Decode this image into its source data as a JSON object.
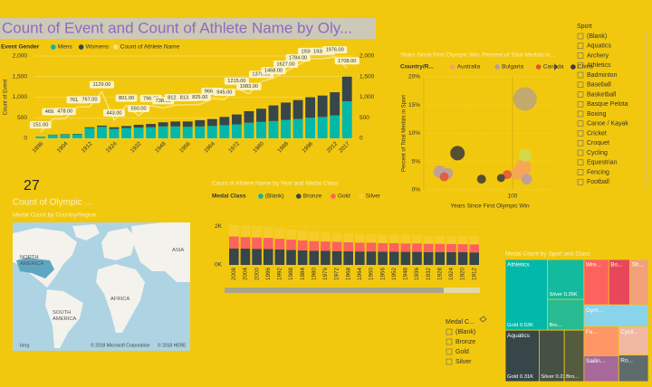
{
  "chart_data": [
    {
      "type": "combo",
      "title": "Count of Event and Count of Athlete Name by Oly...",
      "legend_title": "Event Gender",
      "y_label": "Count of Event",
      "categories": [
        "1896",
        null,
        "1904",
        null,
        "1912",
        null,
        "1924",
        null,
        "1932",
        null,
        "1948",
        null,
        "1956",
        null,
        "1964",
        null,
        "1972",
        null,
        "1980",
        null,
        "1988",
        null,
        "1996",
        null,
        "2012",
        "2017"
      ],
      "series": [
        {
          "name": "Mens",
          "color": "#01b8aa",
          "values": [
            43,
            85,
            90,
            100,
            250,
            280,
            230,
            250,
            260,
            270,
            290,
            290,
            280,
            290,
            300,
            320,
            340,
            380,
            400,
            420,
            450,
            470,
            500,
            520,
            560,
            900
          ]
        },
        {
          "name": "Womens",
          "color": "#374649",
          "values": [
            0,
            5,
            10,
            10,
            20,
            30,
            40,
            50,
            70,
            80,
            100,
            120,
            130,
            150,
            170,
            200,
            240,
            280,
            320,
            380,
            420,
            460,
            500,
            520,
            560,
            600
          ]
        },
        {
          "name": "Count of Athlete Name",
          "color": "#f7e27c",
          "type": "line",
          "axis": "y2",
          "values": [
            151,
            469,
            478,
            761,
            767,
            1129,
            443,
            801,
            550,
            796,
            738,
            812,
            813,
            825,
            966,
            945,
            1215,
            1083,
            1379,
            1468,
            1627,
            1784,
            1936,
            1938,
            1976,
            1708
          ],
          "value_labels": [
            "151.00",
            "469.00",
            "478.00",
            "761.00",
            "767.00",
            "1129.00",
            "443.00",
            "801.00",
            "550.00",
            "796.00",
            "738.00",
            "812.00",
            "813.00",
            "825.00",
            "966.00",
            "945.00",
            "1215.00",
            "1083.00",
            "1379.00",
            "1468.00",
            "1627.00",
            "1784.00",
            "1936.00",
            "1938.00",
            "1976.00",
            "1708.00"
          ]
        }
      ],
      "ylim": [
        0,
        2000
      ],
      "yticks": [
        0,
        500,
        {
          "value": 1000,
          "label": "1,000"
        },
        {
          "value": 1500,
          "label": "1,500"
        },
        {
          "value": 2000,
          "label": "2,000"
        }
      ],
      "y2lim": [
        0,
        2000
      ],
      "y2ticks": [
        0,
        500,
        {
          "value": 1000,
          "label": "1,000"
        },
        {
          "value": 1500,
          "label": "1,500"
        },
        {
          "value": 2000,
          "label": "2,000"
        }
      ],
      "grid": true
    },
    {
      "type": "scatter",
      "title": "Years Since First Olympic Win, Percent of Total Medals in...",
      "legend_title": "Country/R...",
      "x_label": "Years Since First Olympic Win",
      "y_label": "Percent of Total Medals in Sport",
      "xlim": [
        0,
        150
      ],
      "xticks": [
        100
      ],
      "ylim": [
        0,
        20
      ],
      "yticks": [
        {
          "value": 0,
          "label": "0%"
        },
        {
          "value": 5,
          "label": "5%"
        },
        {
          "value": 10,
          "label": "10%"
        },
        {
          "value": 15,
          "label": "15%"
        },
        {
          "value": 20,
          "label": "20%"
        }
      ],
      "series": [
        {
          "name": "Australia",
          "color": "#f5a35c",
          "x": [
            112,
            105
          ],
          "values": [
            4.0,
            2.9
          ],
          "sizes": [
            81,
            49
          ]
        },
        {
          "name": "Bulgaria",
          "color": "#b99aae",
          "x": [
            18,
            27,
            116
          ],
          "values": [
            3.2,
            2.9,
            1.9
          ],
          "sizes": [
            49,
            36,
            36
          ]
        },
        {
          "name": "Canada",
          "color": "#e0533a",
          "x": [
            23,
            94
          ],
          "values": [
            2.3,
            2.7
          ],
          "sizes": [
            25,
            25
          ]
        },
        {
          "name": "China",
          "color": "#3a3a3a",
          "x": [
            38,
            65,
            87
          ],
          "values": [
            6.5,
            1.9,
            2.1
          ],
          "sizes": [
            64,
            25,
            20
          ]
        },
        {
          "color": "#b8a57c",
          "x": [
            114
          ],
          "values": [
            16.1
          ],
          "sizes": [
            169
          ]
        },
        {
          "color": "#cfdc55",
          "x": [
            114
          ],
          "values": [
            6.1
          ],
          "sizes": [
            49
          ]
        }
      ]
    },
    {
      "type": "stacked_bar",
      "title": "Count of Athlete Name by Year and Medal Class",
      "legend_title": "Medal Class",
      "categories": [
        "2008",
        "2004",
        "2000",
        "1996",
        "1992",
        "1988",
        "1984",
        "1980",
        "1976",
        "1972",
        "1968",
        "1964",
        "1960",
        "1956",
        "1952",
        "1948",
        "1936",
        "1932",
        "1928",
        "1924",
        "1920",
        "1912"
      ],
      "series": [
        {
          "name": "(Blank)",
          "color": "#01b8aa",
          "values": [
            0,
            0,
            0,
            0,
            0,
            0,
            0,
            0,
            0,
            0,
            0,
            0,
            0,
            0,
            0,
            0,
            0,
            0,
            0,
            0,
            0,
            0
          ]
        },
        {
          "name": "Bronze",
          "color": "#374649",
          "values": [
            860,
            850,
            840,
            830,
            800,
            780,
            760,
            740,
            730,
            720,
            710,
            700,
            700,
            690,
            690,
            680,
            680,
            670,
            670,
            660,
            660,
            650
          ]
        },
        {
          "name": "Gold",
          "color": "#fd625e",
          "values": [
            620,
            600,
            590,
            580,
            560,
            540,
            520,
            500,
            490,
            480,
            470,
            460,
            460,
            450,
            450,
            440,
            440,
            430,
            430,
            430,
            420,
            420
          ]
        },
        {
          "name": "Silver",
          "color": "#f4cd2a",
          "values": [
            600,
            590,
            580,
            570,
            550,
            530,
            510,
            490,
            480,
            470,
            460,
            450,
            450,
            440,
            440,
            430,
            430,
            420,
            420,
            420,
            410,
            410
          ]
        }
      ],
      "ylim": [
        0,
        2400
      ],
      "yticks": [
        {
          "value": 0,
          "label": "0K"
        },
        {
          "value": 2000,
          "label": "2K"
        }
      ]
    },
    {
      "type": "treemap",
      "title": "Medal Count by Sport and Class",
      "groups": [
        {
          "name": "Athletics",
          "color": "#01b8aa",
          "children": [
            {
              "name": "Gold",
              "value": 530,
              "value_label": "0.53K"
            },
            {
              "name": "Silver",
              "value": 260,
              "value_label": "0.26K"
            },
            {
              "name": "Bro...",
              "value": 200
            }
          ]
        },
        {
          "name": "Aquatics",
          "color": "#374649",
          "children": [
            {
              "name": "Gold",
              "value": 310,
              "value_label": "0.31K"
            },
            {
              "name": "Silver",
              "value": 230,
              "value_label": "0.23K"
            },
            {
              "name": "Bro...",
              "value": 180
            }
          ]
        },
        {
          "name": "Wre...",
          "color": "#fd625e",
          "value": 200
        },
        {
          "name": "Bo...",
          "color": "#e8475a",
          "value": 170
        },
        {
          "name": "Sh...",
          "color": "#f2a07a",
          "value": 150
        },
        {
          "name": "Gym...",
          "color": "#8ad4eb",
          "value": 250
        },
        {
          "name": "Fe...",
          "color": "#fe9666",
          "value": 180
        },
        {
          "name": "Sailin...",
          "color": "#a66999",
          "value": 160
        },
        {
          "name": "Cycli...",
          "color": "#f0b8a0",
          "value": 150
        },
        {
          "name": "Ro...",
          "color": "#5f6b6d",
          "value": 140
        }
      ]
    }
  ],
  "card": {
    "value": 27,
    "label": "Count of Olympic ..."
  },
  "map": {
    "title": "Medal Count by Country/Region",
    "labels": [
      {
        "lines": [
          "NORTH",
          "AMERICA"
        ]
      },
      {
        "lines": [
          "SOUTH",
          "AMERICA"
        ]
      },
      {
        "lines": [
          "AFRICA"
        ]
      },
      {
        "lines": [
          "ASIA"
        ]
      }
    ],
    "copyright": [
      "© 2018 Microsoft Corporation",
      "© 2018 HERE"
    ],
    "logo": "bing"
  },
  "sport_slicer": {
    "title": "Sport",
    "items": [
      "(Blank)",
      "Aquatics",
      "Archery",
      "Athletics",
      "Badminton",
      "Baseball",
      "Basketball",
      "Basque Pelota",
      "Boxing",
      "Canoe / Kayak",
      "Cricket",
      "Croquet",
      "Cycling",
      "Equestrian",
      "Fencing",
      "Football"
    ]
  },
  "medal_slicer": {
    "title": "Medal C...",
    "items": [
      "(Blank)",
      "Bronze",
      "Gold",
      "Silver"
    ]
  }
}
